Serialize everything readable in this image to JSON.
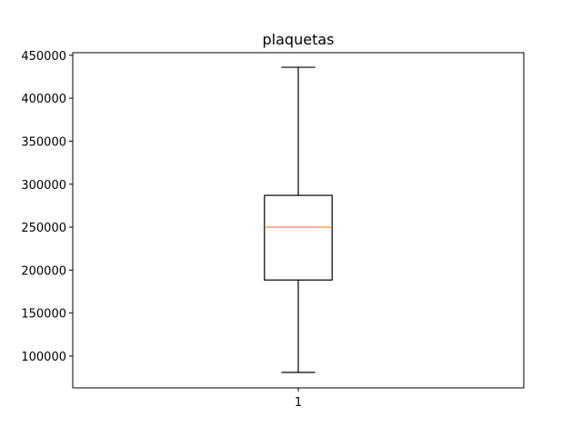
{
  "chart_data": {
    "type": "boxplot",
    "title": "plaquetas",
    "xlabel": "",
    "ylabel": "",
    "categories": [
      "1"
    ],
    "ylim": [
      63000,
      453000
    ],
    "yticks": [
      100000,
      150000,
      200000,
      250000,
      300000,
      350000,
      400000,
      450000
    ],
    "ytick_labels": [
      "100000",
      "150000",
      "200000",
      "250000",
      "300000",
      "350000",
      "400000",
      "450000"
    ],
    "boxes": [
      {
        "category": "1",
        "whisker_low": 81000,
        "q1": 188500,
        "median": 250000,
        "q3": 287000,
        "whisker_high": 436000
      }
    ],
    "grid": false,
    "colors": {
      "box": "#000000",
      "median": "#ff7f0e",
      "whisker": "#000000"
    }
  }
}
